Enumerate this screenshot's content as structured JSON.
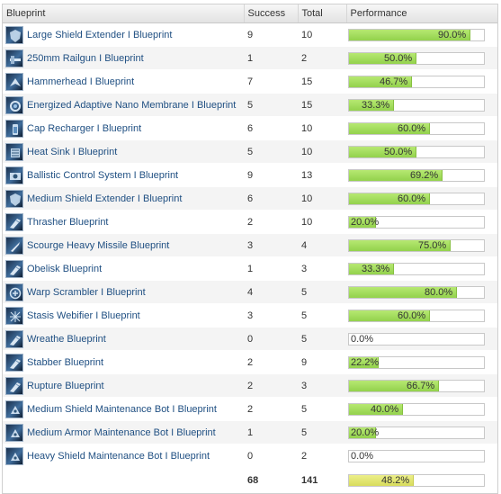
{
  "header": {
    "col_blueprint": "Blueprint",
    "col_success": "Success",
    "col_total": "Total",
    "col_performance": "Performance"
  },
  "rows": [
    {
      "name": "Large Shield Extender I Blueprint",
      "success": "9",
      "total": "10",
      "pct": "90.0%",
      "ratio": 0.9,
      "icon": "shield-extender-icon"
    },
    {
      "name": "250mm Railgun I Blueprint",
      "success": "1",
      "total": "2",
      "pct": "50.0%",
      "ratio": 0.5,
      "icon": "railgun-icon"
    },
    {
      "name": "Hammerhead I Blueprint",
      "success": "7",
      "total": "15",
      "pct": "46.7%",
      "ratio": 0.467,
      "icon": "drone-icon"
    },
    {
      "name": "Energized Adaptive Nano Membrane I Blueprint",
      "success": "5",
      "total": "15",
      "pct": "33.3%",
      "ratio": 0.333,
      "icon": "membrane-icon"
    },
    {
      "name": "Cap Recharger I Blueprint",
      "success": "6",
      "total": "10",
      "pct": "60.0%",
      "ratio": 0.6,
      "icon": "cap-recharger-icon"
    },
    {
      "name": "Heat Sink I Blueprint",
      "success": "5",
      "total": "10",
      "pct": "50.0%",
      "ratio": 0.5,
      "icon": "heat-sink-icon"
    },
    {
      "name": "Ballistic Control System I Blueprint",
      "success": "9",
      "total": "13",
      "pct": "69.2%",
      "ratio": 0.692,
      "icon": "ballistic-control-icon"
    },
    {
      "name": "Medium Shield Extender I Blueprint",
      "success": "6",
      "total": "10",
      "pct": "60.0%",
      "ratio": 0.6,
      "icon": "shield-extender-icon"
    },
    {
      "name": "Thrasher Blueprint",
      "success": "2",
      "total": "10",
      "pct": "20.0%",
      "ratio": 0.2,
      "icon": "ship-icon"
    },
    {
      "name": "Scourge Heavy Missile Blueprint",
      "success": "3",
      "total": "4",
      "pct": "75.0%",
      "ratio": 0.75,
      "icon": "missile-icon"
    },
    {
      "name": "Obelisk Blueprint",
      "success": "1",
      "total": "3",
      "pct": "33.3%",
      "ratio": 0.333,
      "icon": "ship-icon"
    },
    {
      "name": "Warp Scrambler I Blueprint",
      "success": "4",
      "total": "5",
      "pct": "80.0%",
      "ratio": 0.8,
      "icon": "warp-scrambler-icon"
    },
    {
      "name": "Stasis Webifier I Blueprint",
      "success": "3",
      "total": "5",
      "pct": "60.0%",
      "ratio": 0.6,
      "icon": "webifier-icon"
    },
    {
      "name": "Wreathe Blueprint",
      "success": "0",
      "total": "5",
      "pct": "0.0%",
      "ratio": 0,
      "icon": "ship-icon"
    },
    {
      "name": "Stabber Blueprint",
      "success": "2",
      "total": "9",
      "pct": "22.2%",
      "ratio": 0.222,
      "icon": "ship-icon"
    },
    {
      "name": "Rupture Blueprint",
      "success": "2",
      "total": "3",
      "pct": "66.7%",
      "ratio": 0.667,
      "icon": "ship-icon"
    },
    {
      "name": "Medium Shield Maintenance Bot I Blueprint",
      "success": "2",
      "total": "5",
      "pct": "40.0%",
      "ratio": 0.4,
      "icon": "maintenance-bot-icon"
    },
    {
      "name": "Medium Armor Maintenance Bot I Blueprint",
      "success": "1",
      "total": "5",
      "pct": "20.0%",
      "ratio": 0.2,
      "icon": "maintenance-bot-icon"
    },
    {
      "name": "Heavy Shield Maintenance Bot I Blueprint",
      "success": "0",
      "total": "2",
      "pct": "0.0%",
      "ratio": 0,
      "icon": "maintenance-bot-icon"
    }
  ],
  "totals": {
    "success": "68",
    "total": "141",
    "pct": "48.2%",
    "ratio": 0.482
  },
  "colors": {
    "bar_fill": "#a6de5e",
    "total_fill": "#e0e370",
    "link": "#1f4f82",
    "header_bg": "#ececec"
  }
}
